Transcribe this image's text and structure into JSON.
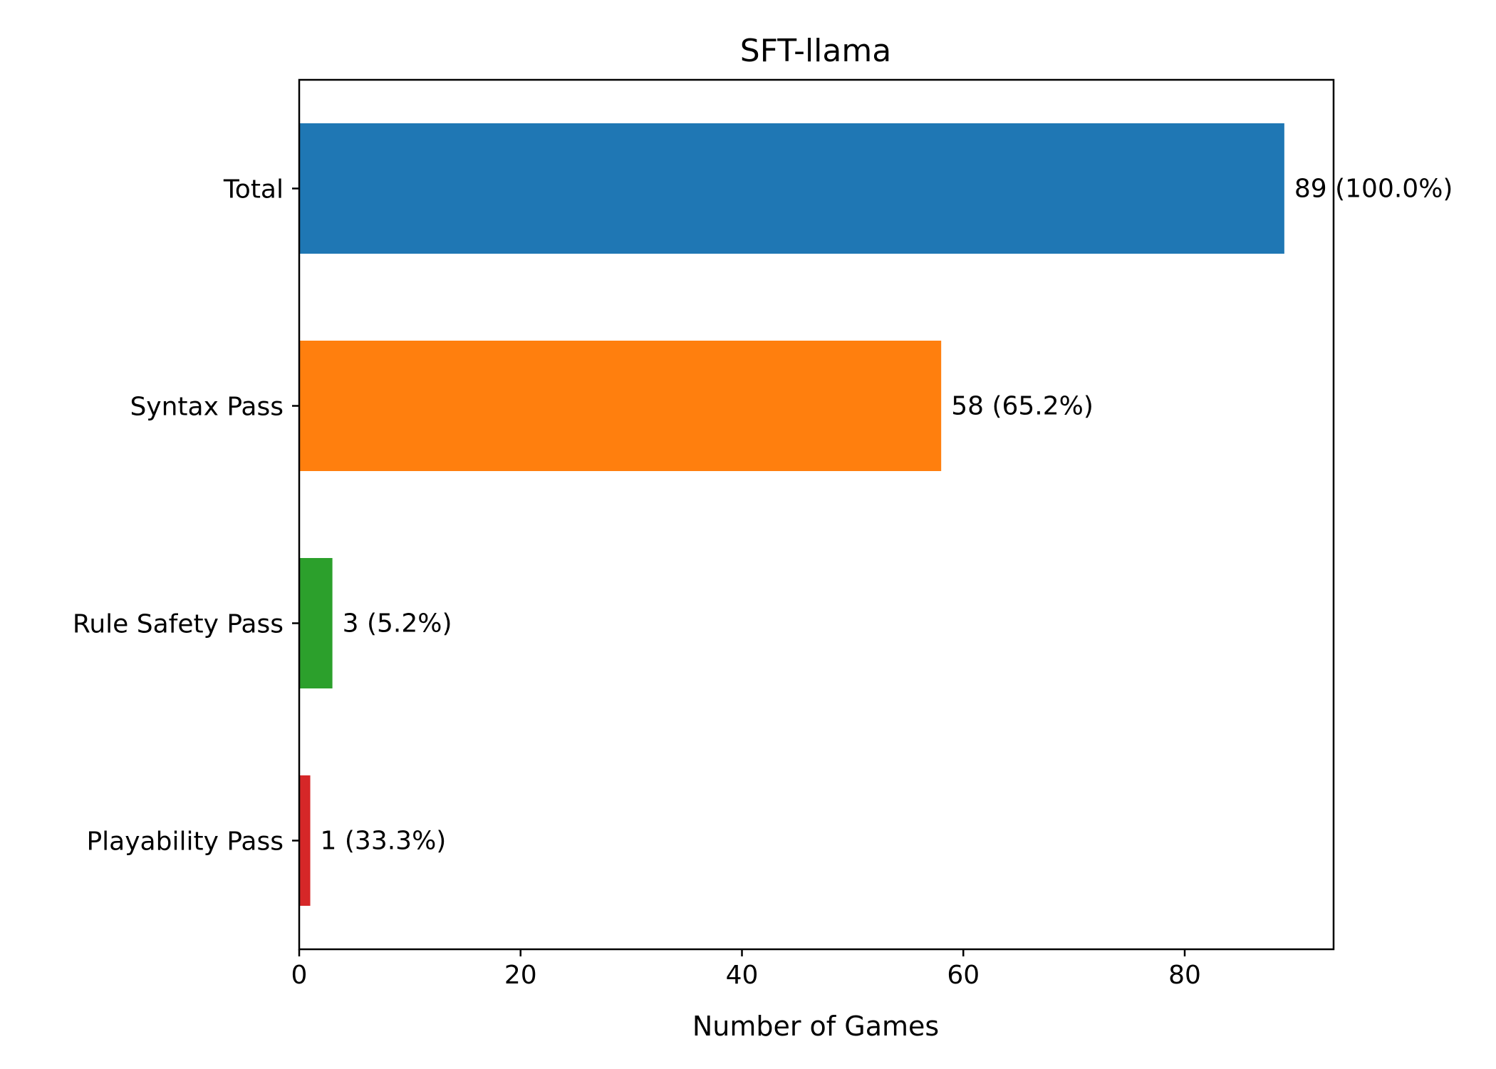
{
  "chart_data": {
    "type": "bar",
    "orientation": "horizontal",
    "title": "SFT-llama",
    "xlabel": "Number of Games",
    "ylabel": "",
    "xlim": [
      0,
      93.45
    ],
    "xticks": [
      0,
      20,
      40,
      60,
      80
    ],
    "grid": false,
    "categories": [
      "Total",
      "Syntax Pass",
      "Rule Safety Pass",
      "Playability Pass"
    ],
    "values": [
      89,
      58,
      3,
      1
    ],
    "data_labels": [
      "89 (100.0%)",
      "58 (65.2%)",
      "3 (5.2%)",
      "1 (33.3%)"
    ],
    "colors": [
      "#1f77b4",
      "#ff7f0e",
      "#2ca02c",
      "#d62728"
    ]
  }
}
